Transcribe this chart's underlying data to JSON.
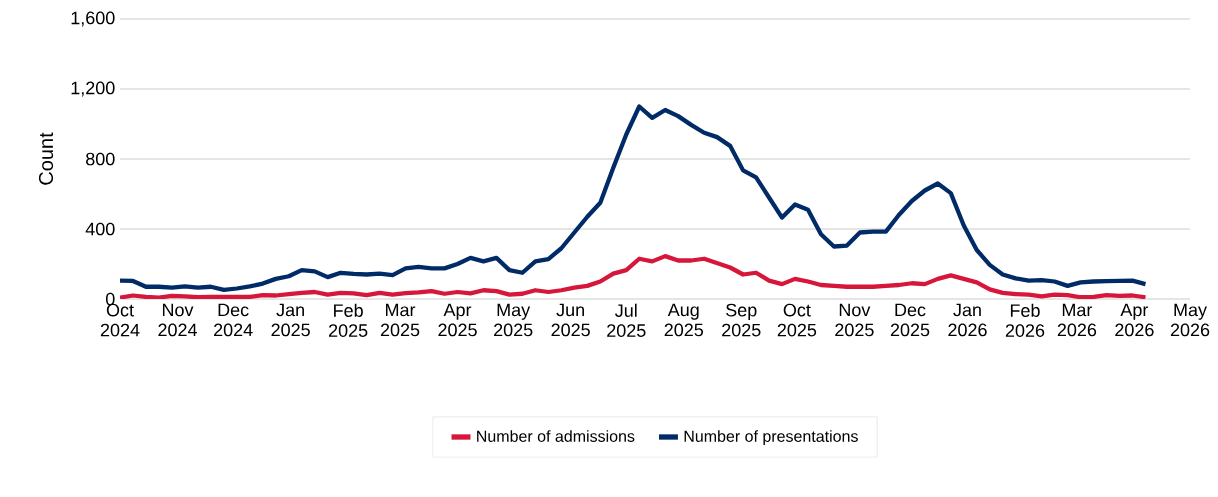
{
  "chart_data": {
    "type": "line",
    "ylabel": "Count",
    "x": [
      "2024-10-01",
      "2024-10-08",
      "2024-10-15",
      "2024-10-22",
      "2024-10-29",
      "2024-11-05",
      "2024-11-12",
      "2024-11-19",
      "2024-11-26",
      "2024-12-03",
      "2024-12-10",
      "2024-12-17",
      "2024-12-24",
      "2024-12-31",
      "2025-01-07",
      "2025-01-14",
      "2025-01-21",
      "2025-01-28",
      "2025-02-04",
      "2025-02-11",
      "2025-02-18",
      "2025-02-25",
      "2025-03-04",
      "2025-03-11",
      "2025-03-18",
      "2025-03-25",
      "2025-04-01",
      "2025-04-08",
      "2025-04-15",
      "2025-04-22",
      "2025-04-29",
      "2025-05-06",
      "2025-05-13",
      "2025-05-20",
      "2025-05-27",
      "2025-06-03",
      "2025-06-10",
      "2025-06-17",
      "2025-06-24",
      "2025-07-01",
      "2025-07-08",
      "2025-07-15",
      "2025-07-22",
      "2025-07-29",
      "2025-08-05",
      "2025-08-12",
      "2025-08-19",
      "2025-08-26",
      "2025-09-02",
      "2025-09-09",
      "2025-09-16",
      "2025-09-23",
      "2025-09-30",
      "2025-10-07",
      "2025-10-14",
      "2025-10-21",
      "2025-10-28",
      "2025-11-04",
      "2025-11-11",
      "2025-11-18",
      "2025-11-25",
      "2025-12-02",
      "2025-12-09",
      "2025-12-16",
      "2025-12-23",
      "2025-12-30",
      "2026-01-06",
      "2026-01-13",
      "2026-01-20",
      "2026-01-27",
      "2026-02-03",
      "2026-02-10",
      "2026-02-17",
      "2026-02-24",
      "2026-03-03",
      "2026-03-10",
      "2026-03-17",
      "2026-03-24",
      "2026-03-31",
      "2026-04-07"
    ],
    "series": [
      {
        "name": "Number of admissions",
        "color": "#d6163b",
        "values": [
          8,
          20,
          12,
          8,
          18,
          15,
          10,
          12,
          12,
          12,
          12,
          22,
          20,
          28,
          35,
          40,
          25,
          35,
          32,
          22,
          35,
          25,
          33,
          38,
          45,
          30,
          40,
          32,
          50,
          45,
          25,
          30,
          50,
          40,
          50,
          65,
          75,
          100,
          145,
          165,
          230,
          215,
          245,
          220,
          220,
          230,
          205,
          180,
          140,
          150,
          105,
          85,
          115,
          100,
          80,
          75,
          70,
          70,
          70,
          75,
          80,
          90,
          85,
          115,
          135,
          115,
          95,
          55,
          35,
          28,
          25,
          15,
          25,
          22,
          10,
          12,
          22,
          18,
          20,
          10
        ]
      },
      {
        "name": "Number of presentations",
        "color": "#002b66",
        "values": [
          105,
          103,
          70,
          70,
          65,
          72,
          65,
          70,
          52,
          60,
          72,
          88,
          115,
          130,
          165,
          158,
          125,
          150,
          143,
          140,
          145,
          137,
          175,
          183,
          175,
          175,
          200,
          235,
          215,
          235,
          165,
          150,
          215,
          228,
          290,
          380,
          470,
          550,
          750,
          940,
          1100,
          1035,
          1080,
          1045,
          995,
          950,
          925,
          875,
          735,
          695,
          580,
          465,
          540,
          510,
          370,
          300,
          305,
          380,
          385,
          385,
          480,
          560,
          620,
          660,
          605,
          420,
          280,
          195,
          140,
          118,
          105,
          108,
          100,
          75,
          95,
          100,
          102,
          103,
          105,
          85
        ]
      }
    ],
    "xlim": [
      "2024-10-01",
      "2026-05-01"
    ],
    "xticks": [
      {
        "value": "2024-10-01",
        "label": "Oct 2024"
      },
      {
        "value": "2024-11-01",
        "label": "Nov 2024"
      },
      {
        "value": "2024-12-01",
        "label": "Dec 2024"
      },
      {
        "value": "2025-01-01",
        "label": "Jan 2025"
      },
      {
        "value": "2025-02-01",
        "label": "Feb 2025"
      },
      {
        "value": "2025-03-01",
        "label": "Mar 2025"
      },
      {
        "value": "2025-04-01",
        "label": "Apr 2025"
      },
      {
        "value": "2025-05-01",
        "label": "May 2025"
      },
      {
        "value": "2025-06-01",
        "label": "Jun 2025"
      },
      {
        "value": "2025-07-01",
        "label": "Jul 2025"
      },
      {
        "value": "2025-08-01",
        "label": "Aug 2025"
      },
      {
        "value": "2025-09-01",
        "label": "Sep 2025"
      },
      {
        "value": "2025-10-01",
        "label": "Oct 2025"
      },
      {
        "value": "2025-11-01",
        "label": "Nov 2025"
      },
      {
        "value": "2025-12-01",
        "label": "Dec 2025"
      },
      {
        "value": "2026-01-01",
        "label": "Jan 2026"
      },
      {
        "value": "2026-02-01",
        "label": "Feb 2026"
      },
      {
        "value": "2026-03-01",
        "label": "Mar 2026"
      },
      {
        "value": "2026-04-01",
        "label": "Apr 2026"
      },
      {
        "value": "2026-05-01",
        "label": "May 2026"
      }
    ],
    "ylim": [
      0,
      1600
    ],
    "yticks": [
      0,
      {
        "value": 400,
        "label": "400"
      },
      {
        "value": 800,
        "label": "800"
      },
      {
        "value": 1200,
        "label": "1,200"
      },
      {
        "value": 1600,
        "label": "1,600"
      }
    ],
    "grid": "y",
    "legend": "bottom",
    "marker": "none",
    "line_style": "solid"
  }
}
